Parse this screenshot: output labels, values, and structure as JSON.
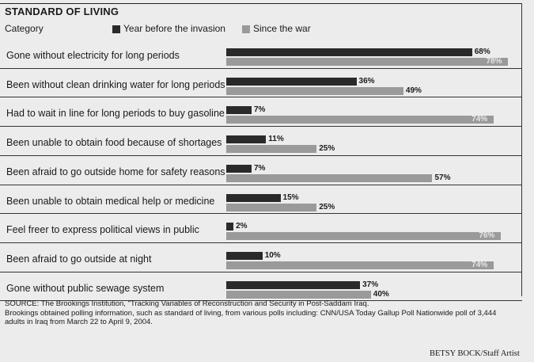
{
  "title": "STANDARD OF LIVING",
  "credit": "BETSY BOCK/Staff Artist",
  "source_lines": [
    "SOURCE: The Brookings Institution, \"Tracking Variables of Reconstruction and Security in Post-Saddam Iraq.",
    "Brookings obtained polling information, such as standard of living, from various polls including: CNN/USA Today Gallup Poll Nationwide poll of 3,444",
    "adults in Iraq from March 22 to April 9, 2004."
  ],
  "colors": {
    "before": "#2a2a2a",
    "since": "#9a9a9a"
  },
  "chart_data": {
    "type": "bar",
    "orientation": "horizontal",
    "category_header": "Category",
    "categories": [
      "Gone without electricity for long periods",
      "Been without clean drinking water for long periods",
      "Had to wait in line for long periods to buy gasoline",
      "Been unable to obtain food because of shortages",
      "Been afraid to go outside home for safety reasons",
      "Been unable to obtain medical help or medicine",
      "Feel freer to express political views in public",
      "Been afraid to go outside at night",
      "Gone without public sewage system"
    ],
    "series": [
      {
        "name": "Year before the invasion",
        "values": [
          68,
          36,
          7,
          11,
          7,
          15,
          2,
          10,
          37
        ],
        "labels": [
          "68%",
          "36%",
          "7%",
          "11%",
          "7%",
          "15%",
          "2%",
          "10%",
          "37%"
        ]
      },
      {
        "name": "Since the war",
        "values": [
          78,
          49,
          74,
          25,
          57,
          25,
          76,
          74,
          40
        ],
        "labels": [
          "78%",
          "49%",
          "74%",
          "25%",
          "57%",
          "25%",
          "76%",
          "74%",
          "40%"
        ]
      }
    ],
    "xlim": [
      0,
      100
    ],
    "legend": "top"
  }
}
